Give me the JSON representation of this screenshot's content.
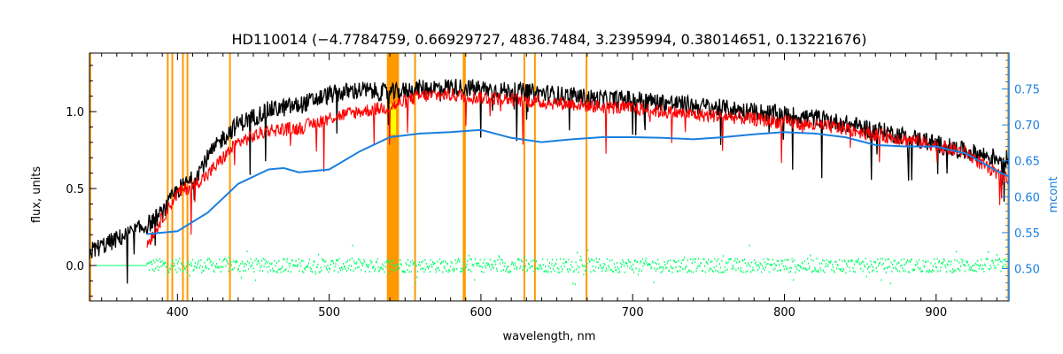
{
  "chart_data": {
    "type": "line",
    "title": "HD110014    (−4.7784759, 0.66929727, 4836.7484, 3.2395994, 0.38014651, 0.13221676)",
    "xlabel": "wavelength, nm",
    "ylabel": "flux, units",
    "y2label": "mcont",
    "xlim": [
      342,
      948
    ],
    "ylim": [
      -0.23,
      1.38
    ],
    "y2lim": [
      0.455,
      0.8
    ],
    "xticks": [
      "400",
      "500",
      "600",
      "700",
      "800",
      "900"
    ],
    "yticks": [
      "0.0",
      "0.5",
      "1.0"
    ],
    "y2ticks": [
      "0.50",
      "0.55",
      "0.60",
      "0.65",
      "0.70",
      "0.75"
    ],
    "grid": false,
    "colors": {
      "observed": "#000000",
      "model": "#ff0000",
      "residual": "#00ff66",
      "continuum": "#1a7fe0",
      "masked_band": "#ff9900",
      "highlight": "#ffff00",
      "right_axis": "#1a7fe0"
    },
    "masked_bands_nm": [
      [
        342,
        343
      ],
      [
        393,
        394
      ],
      [
        396,
        397
      ],
      [
        403,
        404
      ],
      [
        406,
        407
      ],
      [
        434,
        435
      ],
      [
        538,
        546
      ],
      [
        556,
        557
      ],
      [
        588,
        590
      ],
      [
        628,
        629
      ],
      [
        635,
        636
      ],
      [
        669,
        670
      ],
      [
        947,
        948
      ]
    ],
    "highlight_band_nm": [
      540,
      544
    ],
    "series": [
      {
        "key": "continuum",
        "axis": "right",
        "x": [
          380,
          400,
          420,
          440,
          460,
          470,
          480,
          500,
          520,
          540,
          560,
          580,
          600,
          620,
          640,
          660,
          680,
          700,
          720,
          740,
          760,
          780,
          800,
          820,
          840,
          860,
          880,
          900,
          920,
          940,
          948
        ],
        "y": [
          0.548,
          0.552,
          0.578,
          0.618,
          0.638,
          0.64,
          0.634,
          0.638,
          0.663,
          0.683,
          0.688,
          0.69,
          0.693,
          0.682,
          0.676,
          0.68,
          0.683,
          0.683,
          0.682,
          0.68,
          0.683,
          0.687,
          0.69,
          0.688,
          0.683,
          0.672,
          0.67,
          0.67,
          0.66,
          0.636,
          0.628
        ]
      },
      {
        "key": "observed",
        "axis": "left",
        "x": [
          342,
          360,
          380,
          390,
          400,
          410,
          420,
          430,
          440,
          460,
          480,
          500,
          520,
          540,
          560,
          580,
          600,
          620,
          640,
          660,
          680,
          700,
          720,
          740,
          760,
          780,
          800,
          820,
          840,
          860,
          880,
          900,
          920,
          940,
          948
        ],
        "y": [
          0.09,
          0.17,
          0.26,
          0.34,
          0.49,
          0.56,
          0.7,
          0.83,
          0.92,
          1.01,
          1.04,
          1.11,
          1.14,
          1.12,
          1.15,
          1.16,
          1.15,
          1.13,
          1.12,
          1.1,
          1.08,
          1.08,
          1.06,
          1.04,
          1.02,
          1.0,
          0.98,
          0.96,
          0.92,
          0.88,
          0.84,
          0.79,
          0.74,
          0.7,
          0.69
        ]
      },
      {
        "key": "model",
        "axis": "left",
        "x": [
          380,
          390,
          400,
          410,
          420,
          430,
          440,
          460,
          480,
          500,
          520,
          540,
          560,
          580,
          600,
          620,
          640,
          660,
          680,
          700,
          720,
          740,
          760,
          780,
          800,
          820,
          840,
          860,
          880,
          900,
          920,
          940,
          948
        ],
        "y": [
          0.14,
          0.31,
          0.47,
          0.52,
          0.59,
          0.7,
          0.8,
          0.88,
          0.89,
          0.96,
          1.0,
          1.03,
          1.1,
          1.11,
          1.09,
          1.08,
          1.06,
          1.05,
          1.03,
          1.02,
          1.0,
          0.98,
          0.97,
          0.95,
          0.93,
          0.91,
          0.89,
          0.85,
          0.82,
          0.78,
          0.73,
          0.59,
          0.56
        ]
      },
      {
        "key": "residual",
        "axis": "left",
        "x": [
          380,
          948
        ],
        "y": [
          0.0,
          0.0
        ]
      }
    ]
  }
}
